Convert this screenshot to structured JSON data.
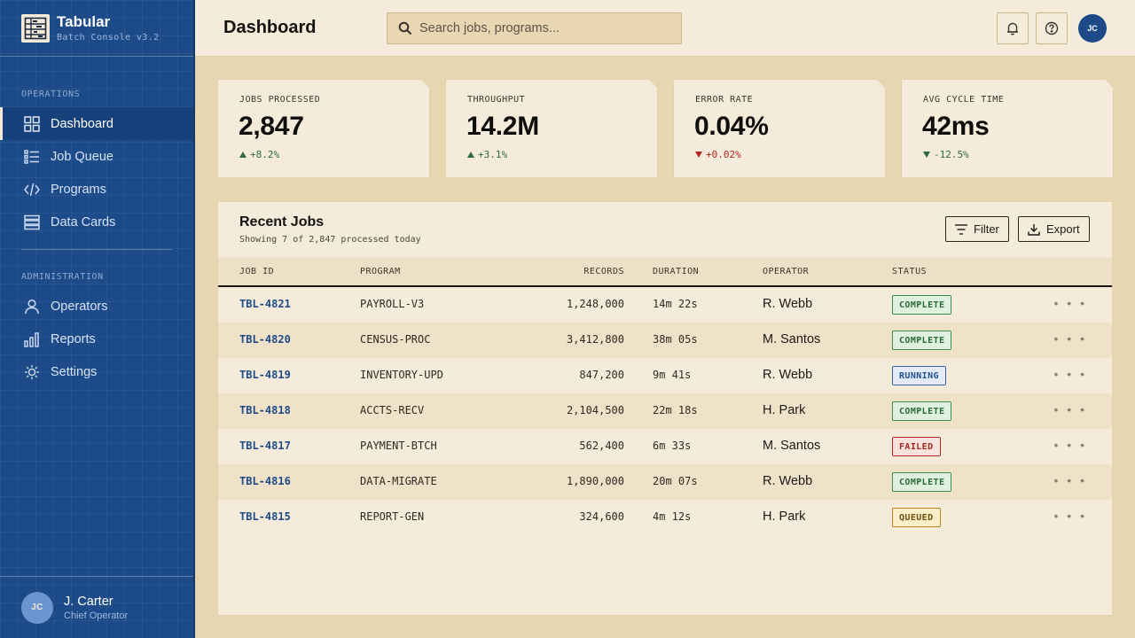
{
  "brand": {
    "name": "Tabular",
    "version": "Batch Console v3.2"
  },
  "sidebar": {
    "sections": [
      {
        "label": "OPERATIONS"
      },
      {
        "label": "ADMINISTRATION"
      }
    ],
    "items": [
      {
        "label": "Dashboard",
        "icon": "dashboard-icon",
        "active": true
      },
      {
        "label": "Job Queue",
        "icon": "list-icon"
      },
      {
        "label": "Programs",
        "icon": "code-icon"
      },
      {
        "label": "Data Cards",
        "icon": "database-icon"
      },
      {
        "label": "Operators",
        "icon": "user-icon"
      },
      {
        "label": "Reports",
        "icon": "bar-chart-icon"
      },
      {
        "label": "Settings",
        "icon": "gear-icon"
      }
    ],
    "user": {
      "initials": "JC",
      "name": "J. Carter",
      "role": "Chief Operator"
    }
  },
  "header": {
    "title": "Dashboard",
    "search_placeholder": "Search jobs, programs...",
    "avatar_initials": "JC"
  },
  "stats": [
    {
      "label": "JOBS PROCESSED",
      "value": "2,847",
      "delta": "+8.2%",
      "direction": "up",
      "tone": "good"
    },
    {
      "label": "THROUGHPUT",
      "value": "14.2M",
      "delta": "+3.1%",
      "direction": "up",
      "tone": "good"
    },
    {
      "label": "ERROR RATE",
      "value": "0.04%",
      "delta": "+0.02%",
      "direction": "down",
      "tone": "bad"
    },
    {
      "label": "AVG CYCLE TIME",
      "value": "42ms",
      "delta": "-12.5%",
      "direction": "down",
      "tone": "good"
    }
  ],
  "recent_jobs": {
    "title": "Recent Jobs",
    "subtitle": "Showing 7 of 2,847 processed today",
    "filter_label": "Filter",
    "export_label": "Export",
    "columns": [
      "JOB ID",
      "PROGRAM",
      "RECORDS",
      "DURATION",
      "OPERATOR",
      "STATUS"
    ],
    "rows": [
      {
        "id": "TBL-4821",
        "program": "PAYROLL-V3",
        "records": "1,248,000",
        "duration": "14m 22s",
        "operator": "R. Webb",
        "status": "COMPLETE"
      },
      {
        "id": "TBL-4820",
        "program": "CENSUS-PROC",
        "records": "3,412,800",
        "duration": "38m 05s",
        "operator": "M. Santos",
        "status": "COMPLETE"
      },
      {
        "id": "TBL-4819",
        "program": "INVENTORY-UPD",
        "records": "847,200",
        "duration": "9m 41s",
        "operator": "R. Webb",
        "status": "RUNNING"
      },
      {
        "id": "TBL-4818",
        "program": "ACCTS-RECV",
        "records": "2,104,500",
        "duration": "22m 18s",
        "operator": "H. Park",
        "status": "COMPLETE"
      },
      {
        "id": "TBL-4817",
        "program": "PAYMENT-BTCH",
        "records": "562,400",
        "duration": "6m 33s",
        "operator": "M. Santos",
        "status": "FAILED"
      },
      {
        "id": "TBL-4816",
        "program": "DATA-MIGRATE",
        "records": "1,890,000",
        "duration": "20m 07s",
        "operator": "R. Webb",
        "status": "COMPLETE"
      },
      {
        "id": "TBL-4815",
        "program": "REPORT-GEN",
        "records": "324,600",
        "duration": "4m 12s",
        "operator": "H. Park",
        "status": "QUEUED"
      }
    ],
    "row_menu": "• • •"
  },
  "colors": {
    "sidebar": "#1d4b8a",
    "background": "#e6d6b2",
    "surface": "#f5ebda",
    "good": "#2e6b3a",
    "bad": "#b0281f"
  }
}
